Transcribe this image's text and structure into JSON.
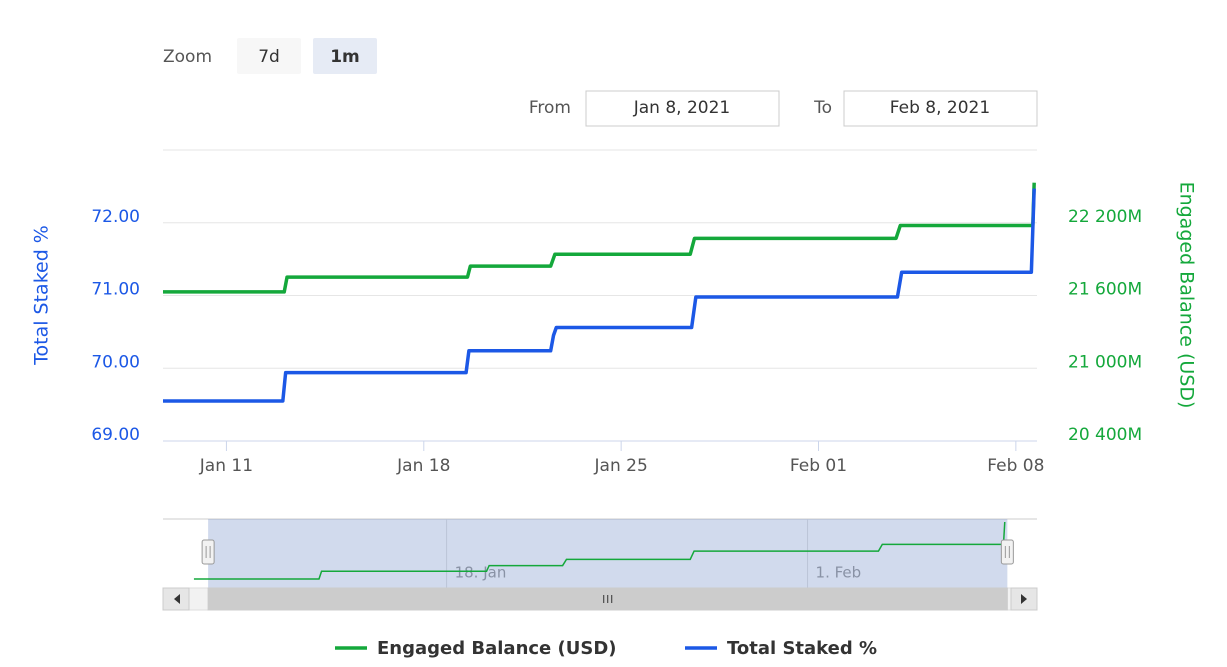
{
  "chart_data": {
    "type": "line",
    "step": true,
    "range_selector": {
      "zoom_label": "Zoom",
      "buttons": [
        "7d",
        "1m"
      ],
      "selected": 1,
      "from_label": "From",
      "from_value": "Jan 8, 2021",
      "to_label": "To",
      "to_value": "Feb 8, 2021"
    },
    "xlim": [
      8.75,
      39.75
    ],
    "xticks": [
      {
        "value": 11,
        "label": "Jan 11"
      },
      {
        "value": 18,
        "label": "Jan 18"
      },
      {
        "value": 25,
        "label": "Jan 25"
      },
      {
        "value": 32,
        "label": "Feb 01"
      },
      {
        "value": 39,
        "label": "Feb 08"
      }
    ],
    "y_label": "Total Staked %",
    "ylim": [
      69,
      73
    ],
    "yticks": [
      {
        "value": 69,
        "label": "69.00"
      },
      {
        "value": 70,
        "label": "70.00"
      },
      {
        "value": 71,
        "label": "71.00"
      },
      {
        "value": 72,
        "label": "72.00"
      }
    ],
    "y2_label": "Engaged Balance (USD)",
    "y2lim": [
      20400,
      22800
    ],
    "y2ticks": [
      {
        "value": 20400,
        "label": "20 400M"
      },
      {
        "value": 21000,
        "label": "21 000M"
      },
      {
        "value": 21600,
        "label": "21 600M"
      },
      {
        "value": 22200,
        "label": "22 200M"
      }
    ],
    "grid": true,
    "series": [
      {
        "name": "Engaged Balance (USD)",
        "color": "#14a83b",
        "axis": "y2",
        "x": [
          8.2,
          13.05,
          13.15,
          19.55,
          19.65,
          22.5,
          22.65,
          27.45,
          27.6,
          34.75,
          34.9,
          39.6,
          39.65
        ],
        "values": [
          21630,
          21630,
          21752,
          21752,
          21842,
          21842,
          21940,
          21940,
          22071,
          22071,
          22177,
          22177,
          22530
        ]
      },
      {
        "name": "Total Staked %",
        "color": "#1c58e6",
        "axis": "y",
        "x": [
          8.2,
          13.0,
          13.1,
          19.5,
          19.6,
          22.5,
          22.6,
          22.7,
          27.5,
          27.65,
          34.8,
          34.95,
          39.55,
          39.65
        ],
        "values": [
          69.55,
          69.55,
          69.94,
          69.94,
          70.24,
          70.24,
          70.45,
          70.56,
          70.56,
          70.98,
          70.98,
          71.32,
          71.32,
          72.47
        ]
      }
    ],
    "navigator": {
      "xlim": [
        7,
        40.9
      ],
      "xticks": [
        {
          "value": 18,
          "label": "18. Jan"
        },
        {
          "value": 32,
          "label": "1. Feb"
        }
      ]
    },
    "legend": "bottom"
  }
}
